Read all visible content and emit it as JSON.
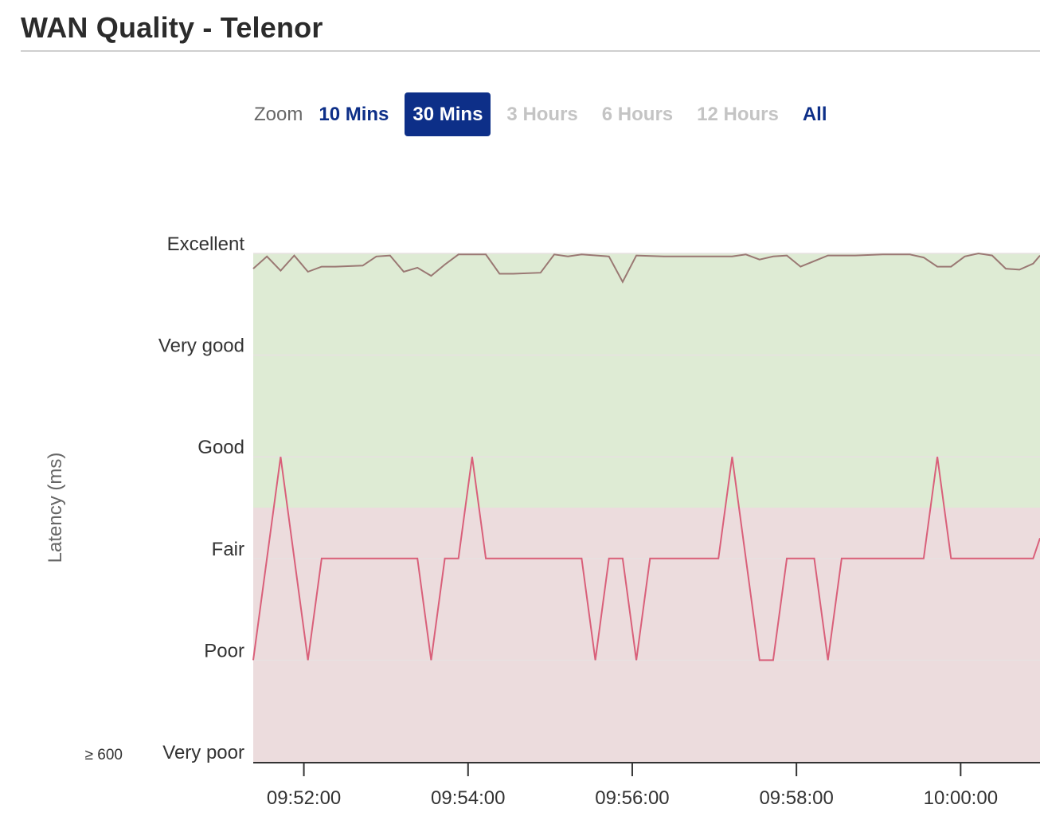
{
  "page": {
    "title": "WAN Quality - Telenor"
  },
  "zoom": {
    "label": "Zoom",
    "options": [
      {
        "label": "10 Mins",
        "state": "enabled"
      },
      {
        "label": "30 Mins",
        "state": "active"
      },
      {
        "label": "3 Hours",
        "state": "disabled"
      },
      {
        "label": "6 Hours",
        "state": "disabled"
      },
      {
        "label": "12 Hours",
        "state": "disabled"
      },
      {
        "label": "All",
        "state": "enabled"
      }
    ]
  },
  "colors": {
    "accent": "#0d2f88",
    "good_band": "#deebd4",
    "bad_band": "#ecdcdd",
    "series_upper": "#9a7873",
    "series_lower": "#d9607a",
    "grid": "#e7e1e1",
    "axis": "#333333"
  },
  "chart_data": {
    "type": "line",
    "ylabel": "Latency (ms)",
    "y_categories": [
      "Very poor",
      "Poor",
      "Fair",
      "Good",
      "Very good",
      "Excellent"
    ],
    "y_floor_label": "≥ 600",
    "ylim": [
      0,
      5
    ],
    "xlim": [
      "09:51:23",
      "10:00:58"
    ],
    "x_ticks": [
      "09:52:00",
      "09:54:00",
      "09:56:00",
      "09:58:00",
      "10:00:00"
    ],
    "bands": [
      {
        "from": 0,
        "to": 2.5,
        "meaning": "bad"
      },
      {
        "from": 2.5,
        "to": 5,
        "meaning": "good"
      }
    ],
    "series": [
      {
        "x": [
          "09:51:23",
          "09:51:33",
          "09:51:43",
          "09:51:53",
          "09:52:03",
          "09:52:13",
          "09:52:23",
          "09:52:43",
          "09:52:53",
          "09:53:03",
          "09:53:13",
          "09:53:23",
          "09:53:33",
          "09:53:43",
          "09:53:53",
          "09:54:03",
          "09:54:13",
          "09:54:23",
          "09:54:33",
          "09:54:53",
          "09:55:03",
          "09:55:13",
          "09:55:23",
          "09:55:43",
          "09:55:53",
          "09:56:03",
          "09:56:23",
          "09:56:43",
          "09:57:03",
          "09:57:13",
          "09:57:23",
          "09:57:33",
          "09:57:43",
          "09:57:53",
          "09:58:03",
          "09:58:23",
          "09:58:43",
          "09:59:03",
          "09:59:13",
          "09:59:23",
          "09:59:33",
          "09:59:43",
          "09:59:53",
          "10:00:03",
          "10:00:13",
          "10:00:23",
          "10:00:33",
          "10:00:43",
          "10:00:53",
          "10:00:58"
        ],
        "values": [
          4.85,
          4.97,
          4.83,
          4.98,
          4.82,
          4.87,
          4.87,
          4.88,
          4.97,
          4.98,
          4.82,
          4.86,
          4.78,
          4.89,
          4.99,
          4.99,
          4.99,
          4.8,
          4.8,
          4.81,
          4.99,
          4.97,
          4.99,
          4.97,
          4.72,
          4.98,
          4.97,
          4.97,
          4.97,
          4.97,
          4.99,
          4.94,
          4.97,
          4.98,
          4.87,
          4.98,
          4.98,
          4.99,
          4.99,
          4.99,
          4.96,
          4.87,
          4.87,
          4.97,
          5.0,
          4.98,
          4.85,
          4.84,
          4.9,
          4.98
        ]
      },
      {
        "x": [
          "09:51:23",
          "09:51:43",
          "09:52:03",
          "09:52:13",
          "09:52:23",
          "09:52:33",
          "09:52:43",
          "09:52:53",
          "09:53:13",
          "09:53:23",
          "09:53:33",
          "09:53:43",
          "09:53:53",
          "09:54:03",
          "09:54:13",
          "09:54:23",
          "09:54:33",
          "09:54:43",
          "09:54:53",
          "09:55:03",
          "09:55:13",
          "09:55:23",
          "09:55:33",
          "09:55:43",
          "09:55:53",
          "09:56:03",
          "09:56:13",
          "09:56:23",
          "09:56:33",
          "09:56:43",
          "09:56:53",
          "09:57:03",
          "09:57:13",
          "09:57:23",
          "09:57:33",
          "09:57:43",
          "09:57:53",
          "09:58:03",
          "09:58:13",
          "09:58:23",
          "09:58:33",
          "09:58:43",
          "09:58:53",
          "09:59:03",
          "09:59:13",
          "09:59:23",
          "09:59:33",
          "09:59:43",
          "09:59:53",
          "10:00:03",
          "10:00:13",
          "10:00:23",
          "10:00:33",
          "10:00:43",
          "10:00:53",
          "10:00:58"
        ],
        "values": [
          1,
          3,
          1,
          2,
          2,
          2,
          2,
          2,
          2,
          2,
          1,
          2,
          2,
          3,
          2,
          2,
          2,
          2,
          2,
          2,
          2,
          2,
          1,
          2,
          2,
          1,
          2,
          2,
          2,
          2,
          2,
          2,
          3,
          2,
          1,
          1,
          2,
          2,
          2,
          1,
          2,
          2,
          2,
          2,
          2,
          2,
          2,
          3,
          2,
          2,
          2,
          2,
          2,
          2,
          2,
          2.2
        ]
      }
    ]
  }
}
